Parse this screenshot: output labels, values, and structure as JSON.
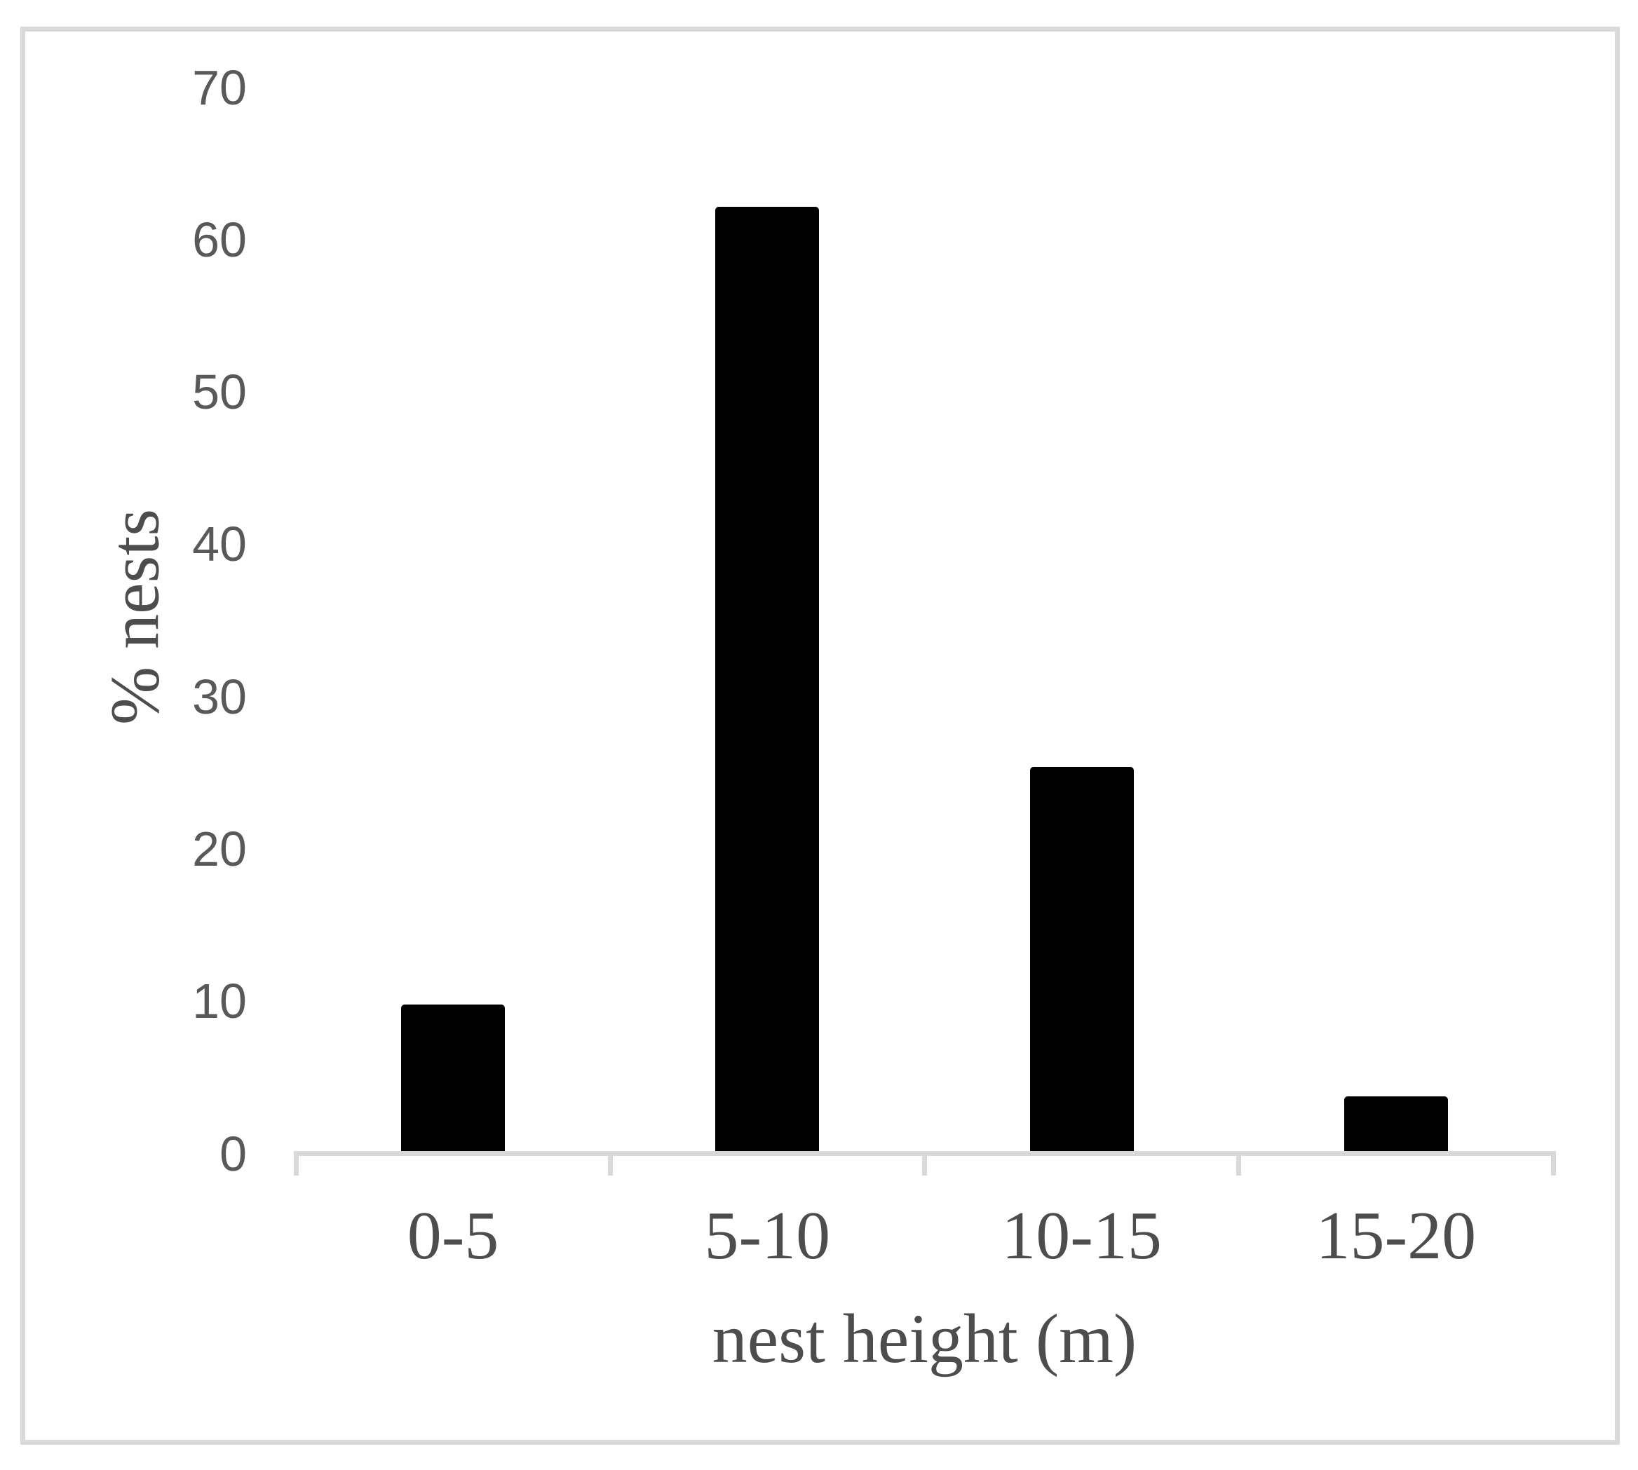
{
  "chart_data": {
    "type": "bar",
    "title": "",
    "categories": [
      "0-5",
      "5-10",
      "10-15",
      "15-20"
    ],
    "values": [
      9.6,
      62,
      25.2,
      3.6
    ],
    "xlabel": "nest height (m)",
    "ylabel": "% nests",
    "ylim": [
      0,
      70
    ],
    "yticks": [
      0,
      10,
      20,
      30,
      40,
      50,
      60,
      70
    ],
    "grid": false,
    "legend": "none",
    "colors": {
      "bar": "#000000",
      "axis": "#d9d9d9",
      "tick_labels": "#595959",
      "titles": "#4d4d4d"
    }
  }
}
